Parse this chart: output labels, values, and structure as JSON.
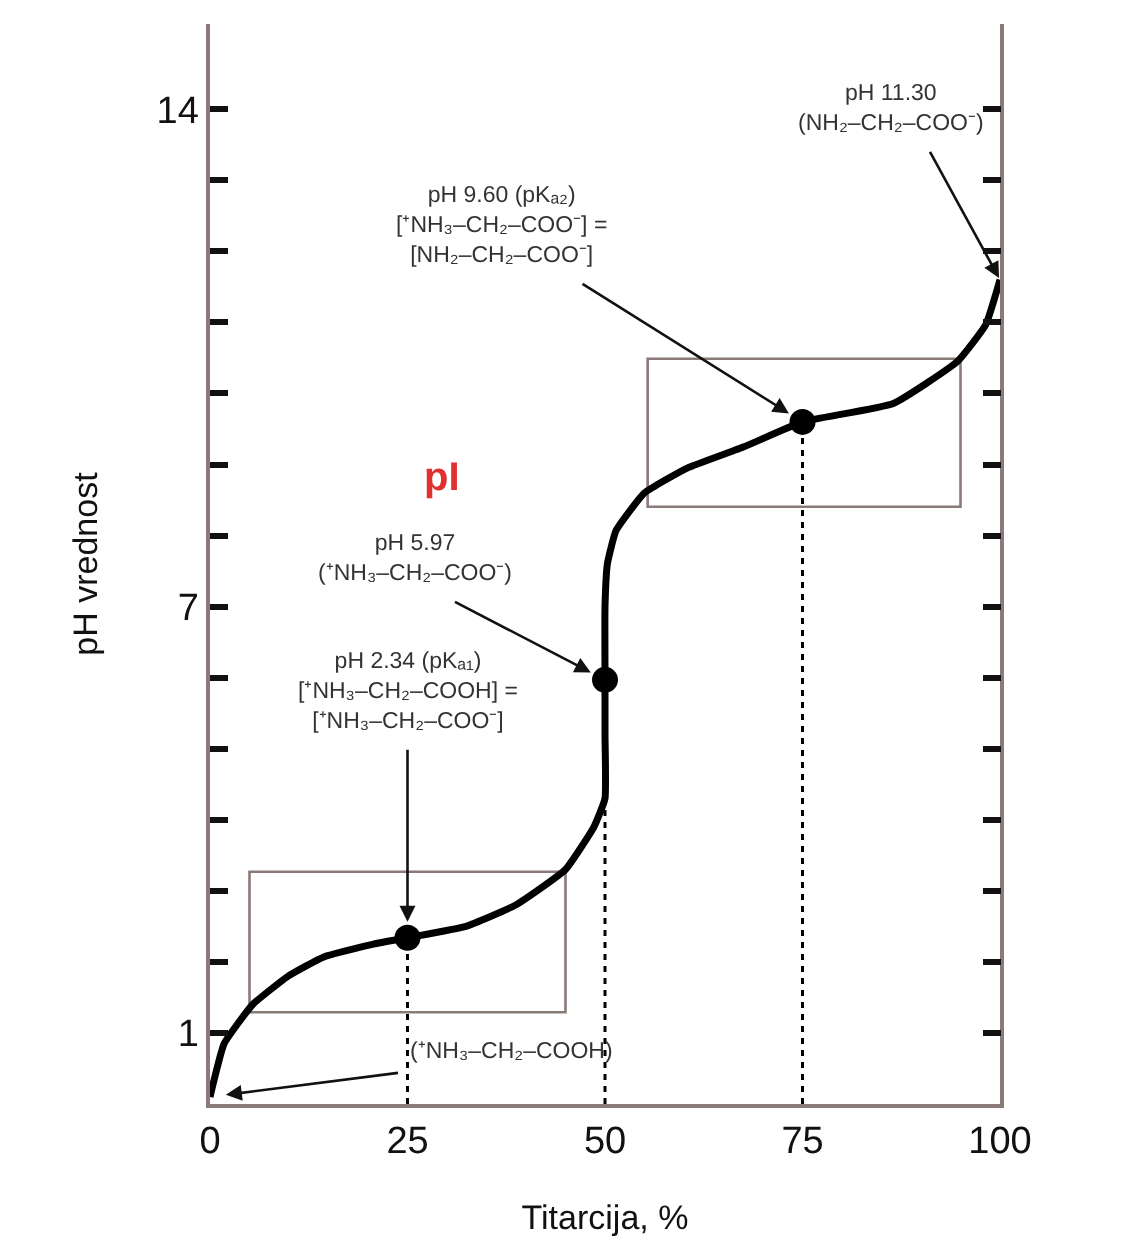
{
  "chart_data": {
    "type": "line",
    "xlabel": "Titarcija, %",
    "ylabel": "pH vrednost",
    "series": [
      {
        "color": "#000000",
        "marker": "none",
        "x": [
          0,
          1.8,
          5.4,
          9.9,
          14.4,
          20.7,
          25,
          32.4,
          38.7,
          45,
          48.6,
          50,
          50,
          50,
          50,
          50.3,
          51.4,
          55,
          60.4,
          67.6,
          75,
          86.5,
          94.6,
          98.2,
          100
        ],
        "values": [
          0.1,
          0.85,
          1.4,
          1.8,
          2.07,
          2.25,
          2.34,
          2.5,
          2.8,
          3.3,
          3.9,
          4.3,
          5.2,
          5.97,
          7,
          7.6,
          8.07,
          8.6,
          8.95,
          9.25,
          9.6,
          9.86,
          10.45,
          10.97,
          11.6
        ]
      },
      {
        "type": "scatter",
        "color": "#000000",
        "marker": "circle",
        "x": [
          25,
          50,
          75
        ],
        "values": [
          2.34,
          5.97,
          9.6
        ]
      }
    ],
    "xlim": [
      0,
      100
    ],
    "xticks": [
      0,
      25,
      50,
      75,
      100
    ],
    "ylim": [
      0,
      15.2
    ],
    "yticks": [
      {
        "value": 1,
        "label": "1"
      },
      {
        "value": 2,
        "label": null
      },
      {
        "value": 3,
        "label": null
      },
      {
        "value": 4,
        "label": null
      },
      {
        "value": 5,
        "label": null
      },
      {
        "value": 6,
        "label": null
      },
      {
        "value": 7,
        "label": "7"
      },
      {
        "value": 8,
        "label": null
      },
      {
        "value": 9,
        "label": null
      },
      {
        "value": 10,
        "label": null
      },
      {
        "value": 11,
        "label": null
      },
      {
        "value": 12,
        "label": null
      },
      {
        "value": 13,
        "label": null
      },
      {
        "value": 14,
        "label": "14"
      }
    ],
    "ref_lines": [
      {
        "axis": "x",
        "value": 25,
        "line_style": "dotted",
        "color": "#000000"
      },
      {
        "axis": "x",
        "value": 50,
        "line_style": "dotted",
        "color": "#000000"
      },
      {
        "axis": "x",
        "value": 75,
        "line_style": "dotted",
        "color": "#000000"
      }
    ],
    "annotations": [
      "pH 11.30\n(NH₂–CH₂–COO⁻)",
      "pH 9.60 (pKₐ₂)\n[⁺NH₃–CH₂–COO⁻] =\n[NH₂–CH₂–COO⁻]",
      "pI",
      "pH 5.97\n(⁺NH₃–CH₂–COO⁻)",
      "pH 2.34 (pKₐ₁)\n[⁺NH₃–CH₂–COOH] =\n[⁺NH₃–CH₂–COO⁻]",
      "(⁺NH₃–CH₂–COOH)"
    ],
    "grid": false,
    "line_style": "solid"
  }
}
